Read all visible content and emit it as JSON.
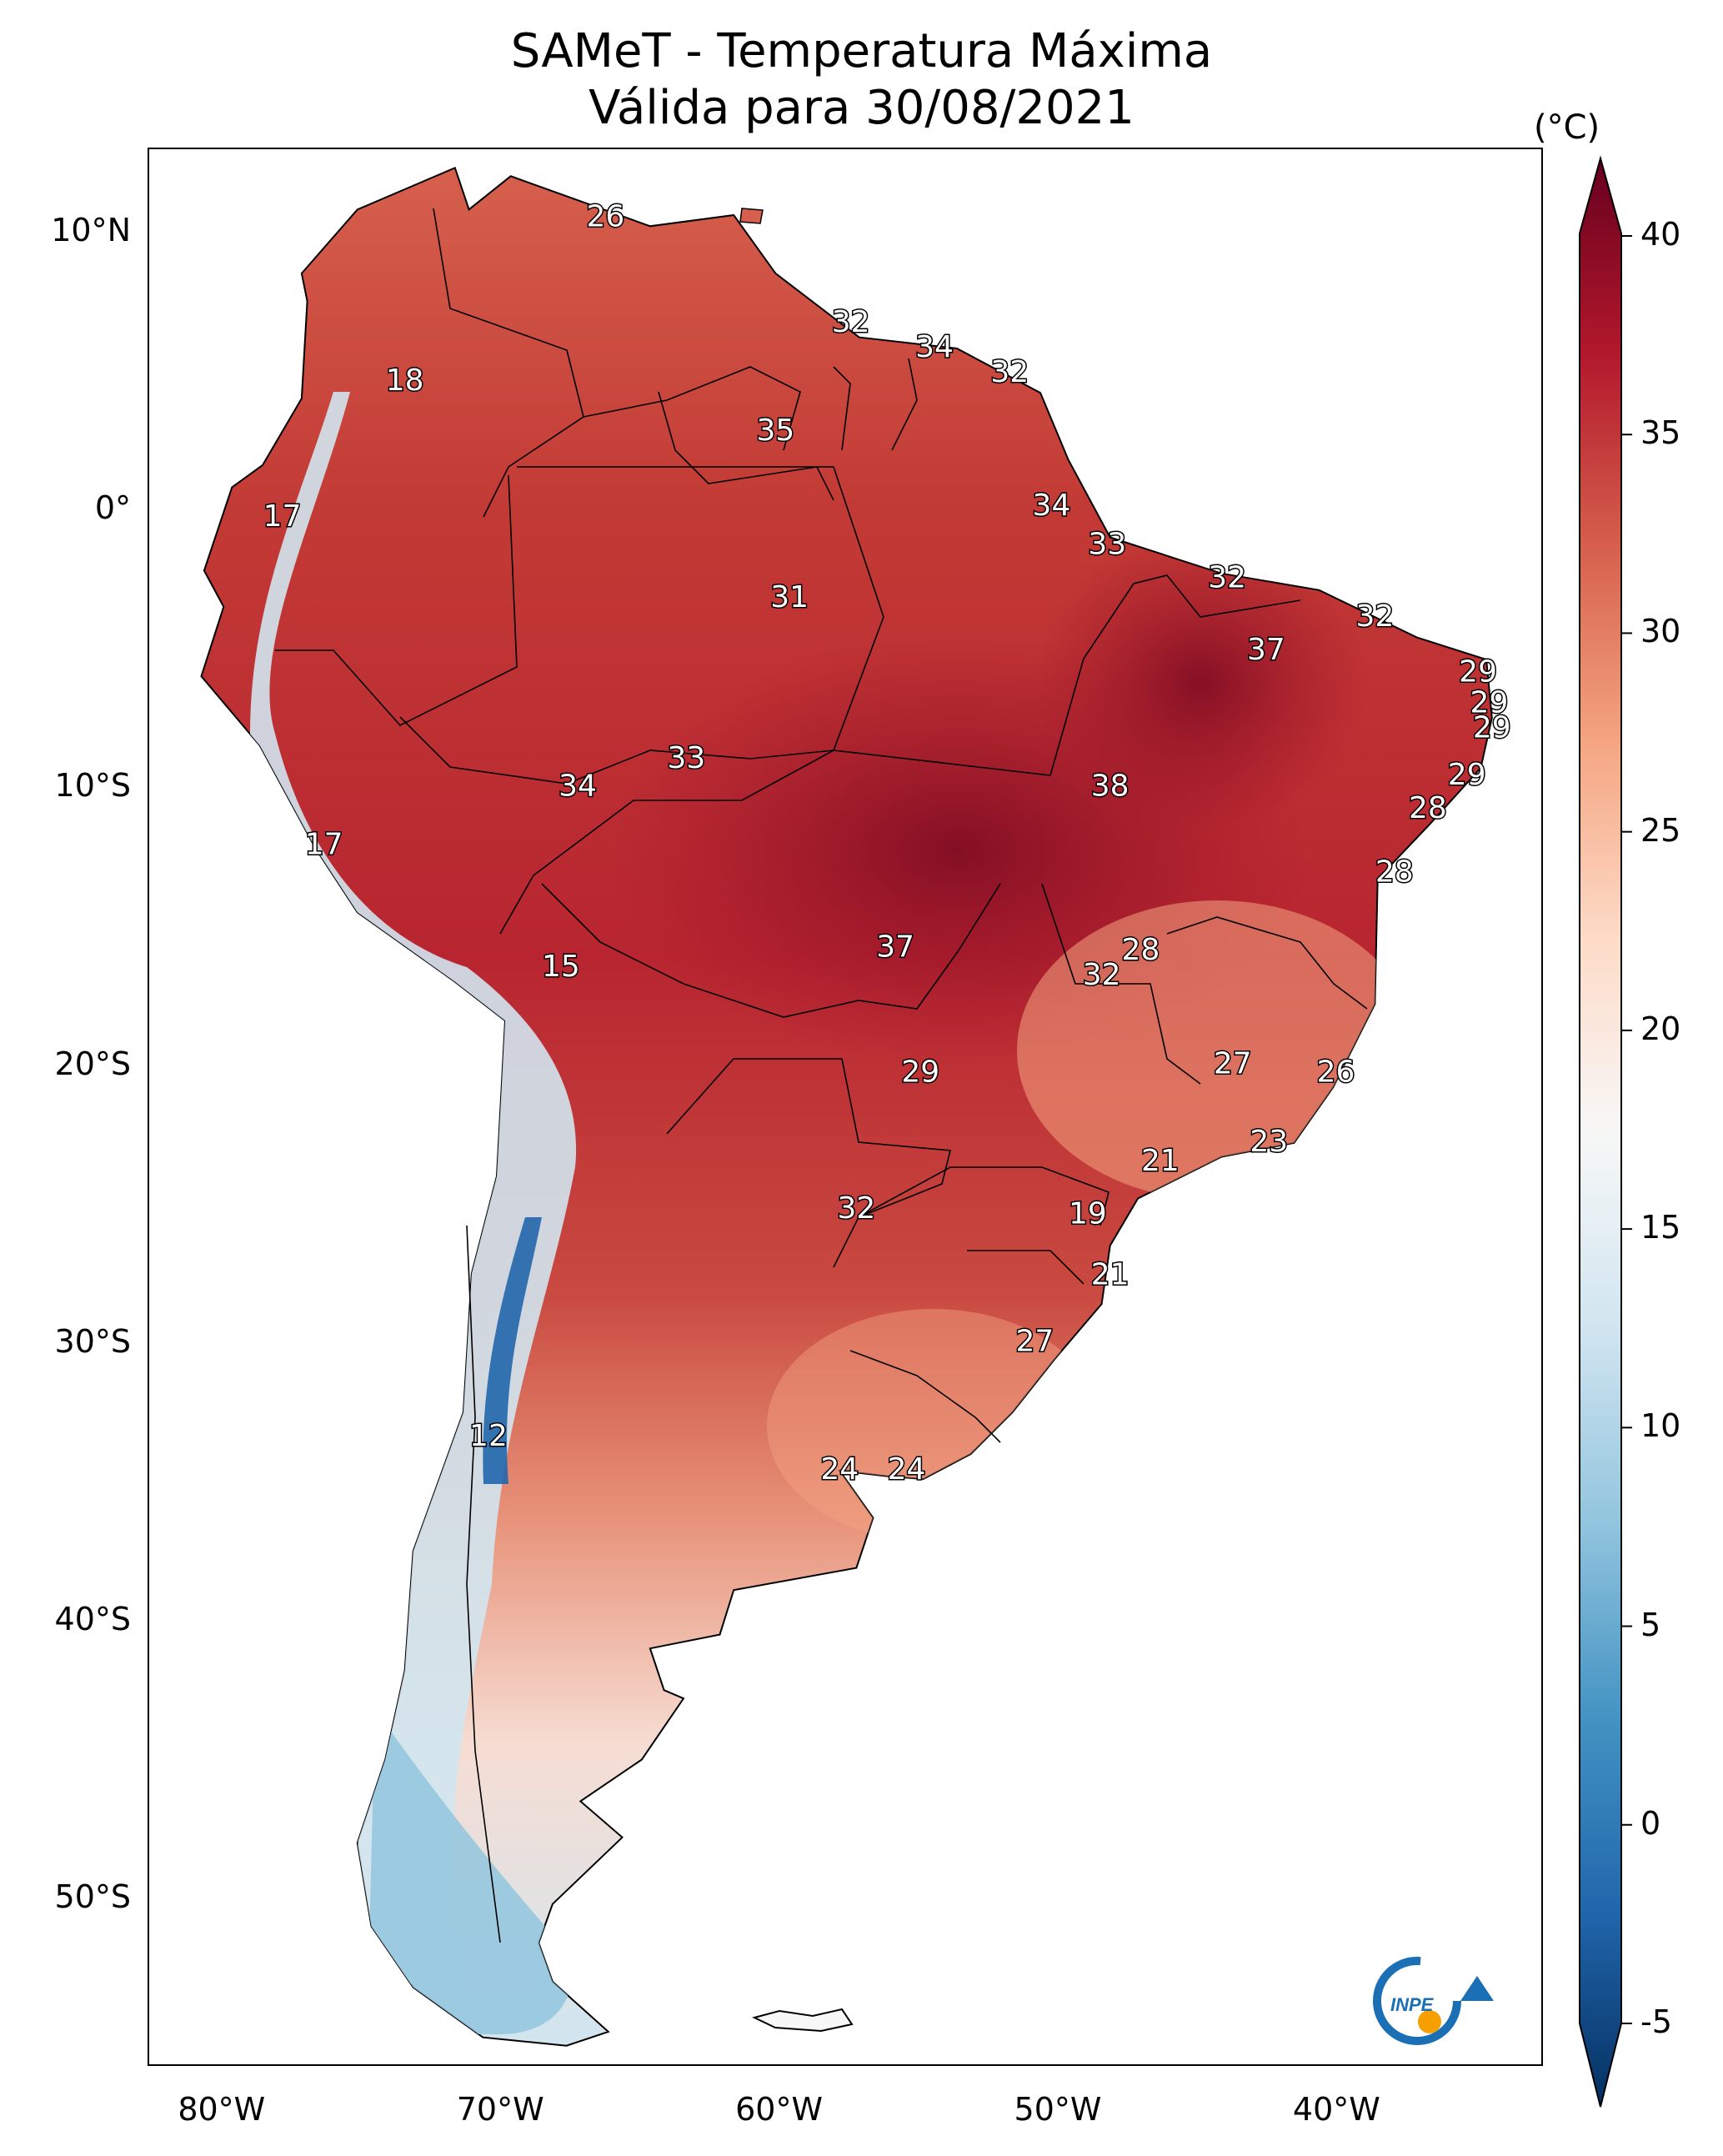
{
  "title": {
    "line1": "SAMeT - Temperatura Máxima",
    "line2": "Válida para 30/08/2021"
  },
  "colorbar": {
    "unit": "(°C)",
    "ticks": [
      "40",
      "35",
      "30",
      "25",
      "20",
      "15",
      "10",
      "5",
      "0",
      "-5"
    ],
    "min": -5,
    "max": 40,
    "colors": [
      "#053061",
      "#2166ac",
      "#4393c3",
      "#92c5de",
      "#d1e5f0",
      "#f7f7f7",
      "#fddbc7",
      "#f4a582",
      "#d6604d",
      "#b2182b",
      "#67001f"
    ]
  },
  "axes": {
    "lat_ticks": [
      "10°N",
      "0°",
      "10°S",
      "20°S",
      "30°S",
      "40°S",
      "50°S"
    ],
    "lon_ticks": [
      "80°W",
      "70°W",
      "60°W",
      "50°W",
      "40°W"
    ]
  },
  "logo": {
    "text": "INPE"
  },
  "labels": [
    {
      "v": "26",
      "lon": -66.6,
      "lat": 10.5
    },
    {
      "v": "32",
      "lon": -57.8,
      "lat": 6.7
    },
    {
      "v": "34",
      "lon": -54.8,
      "lat": 5.8
    },
    {
      "v": "32",
      "lon": -52.1,
      "lat": 4.9
    },
    {
      "v": "18",
      "lon": -73.8,
      "lat": 4.6
    },
    {
      "v": "35",
      "lon": -60.5,
      "lat": 2.8
    },
    {
      "v": "34",
      "lon": -50.6,
      "lat": 0.1
    },
    {
      "v": "17",
      "lon": -78.2,
      "lat": -0.3
    },
    {
      "v": "33",
      "lon": -48.6,
      "lat": -1.3
    },
    {
      "v": "32",
      "lon": -44.3,
      "lat": -2.5
    },
    {
      "v": "31",
      "lon": -60.0,
      "lat": -3.2
    },
    {
      "v": "32",
      "lon": -39.0,
      "lat": -3.9
    },
    {
      "v": "37",
      "lon": -42.9,
      "lat": -5.1
    },
    {
      "v": "29",
      "lon": -35.3,
      "lat": -5.9
    },
    {
      "v": "29",
      "lon": -34.9,
      "lat": -7.0
    },
    {
      "v": "29",
      "lon": -34.8,
      "lat": -7.9
    },
    {
      "v": "33",
      "lon": -63.7,
      "lat": -9.0
    },
    {
      "v": "29",
      "lon": -35.7,
      "lat": -9.6
    },
    {
      "v": "34",
      "lon": -67.6,
      "lat": -10.0
    },
    {
      "v": "38",
      "lon": -48.5,
      "lat": -10.0
    },
    {
      "v": "28",
      "lon": -37.1,
      "lat": -10.8
    },
    {
      "v": "17",
      "lon": -76.7,
      "lat": -12.1
    },
    {
      "v": "28",
      "lon": -38.3,
      "lat": -13.1
    },
    {
      "v": "37",
      "lon": -56.2,
      "lat": -15.8
    },
    {
      "v": "28",
      "lon": -47.4,
      "lat": -15.9
    },
    {
      "v": "15",
      "lon": -68.2,
      "lat": -16.5
    },
    {
      "v": "32",
      "lon": -48.8,
      "lat": -16.8
    },
    {
      "v": "27",
      "lon": -44.1,
      "lat": -20.0
    },
    {
      "v": "29",
      "lon": -55.3,
      "lat": -20.3
    },
    {
      "v": "26",
      "lon": -40.4,
      "lat": -20.3
    },
    {
      "v": "23",
      "lon": -42.8,
      "lat": -22.8
    },
    {
      "v": "21",
      "lon": -46.7,
      "lat": -23.5
    },
    {
      "v": "32",
      "lon": -57.6,
      "lat": -25.2
    },
    {
      "v": "19",
      "lon": -49.3,
      "lat": -25.4
    },
    {
      "v": "21",
      "lon": -48.5,
      "lat": -27.6
    },
    {
      "v": "27",
      "lon": -51.2,
      "lat": -30.0
    },
    {
      "v": "12",
      "lon": -70.8,
      "lat": -33.4
    },
    {
      "v": "24",
      "lon": -58.2,
      "lat": -34.6
    },
    {
      "v": "24",
      "lon": -55.8,
      "lat": -34.6
    }
  ]
}
